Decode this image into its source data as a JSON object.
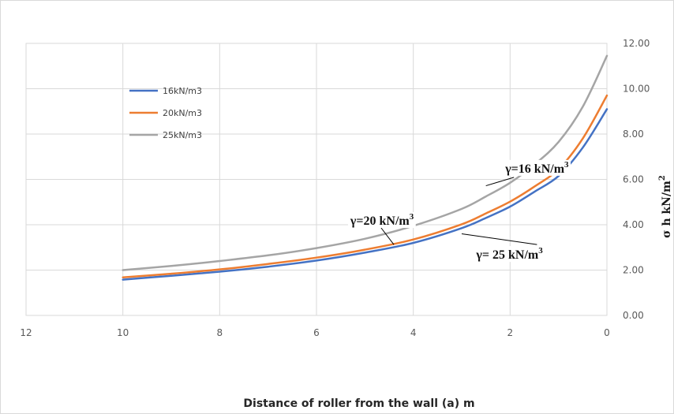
{
  "chart_data": {
    "type": "line",
    "title": "",
    "xlabel": "Distance of roller from the wall (a) m",
    "ylabel": "σ h kN/m",
    "ylabel_superscript": "2",
    "x_reversed": true,
    "xlim": [
      0,
      12
    ],
    "ylim": [
      0,
      12
    ],
    "x_ticks": [
      "12",
      "10",
      "8",
      "6",
      "4",
      "2",
      "0"
    ],
    "y_ticks": [
      "0.00",
      "2.00",
      "4.00",
      "6.00",
      "8.00",
      "10.00",
      "12.00"
    ],
    "grid": true,
    "legend_position": "top-left",
    "series": [
      {
        "name": "16kN/m3",
        "color": "#4472C4",
        "x": [
          10,
          9,
          8,
          7,
          6,
          5,
          4,
          3,
          2.5,
          2,
          1.5,
          1,
          0.5,
          0
        ],
        "y": [
          1.58,
          1.75,
          1.93,
          2.15,
          2.42,
          2.77,
          3.2,
          3.85,
          4.3,
          4.8,
          5.45,
          6.15,
          7.4,
          9.1
        ]
      },
      {
        "name": "20kN/m3",
        "color": "#ED7D31",
        "x": [
          10,
          9,
          8,
          7,
          6,
          5,
          4,
          3,
          2.5,
          2,
          1.5,
          1,
          0.5,
          0
        ],
        "y": [
          1.68,
          1.84,
          2.03,
          2.27,
          2.55,
          2.9,
          3.35,
          4.02,
          4.5,
          5.02,
          5.68,
          6.45,
          7.8,
          9.7
        ]
      },
      {
        "name": "25kN/m3",
        "color": "#A5A5A5",
        "x": [
          10,
          9,
          8,
          7,
          6,
          5,
          4,
          3,
          2.5,
          2,
          1.5,
          1,
          0.5,
          0
        ],
        "y": [
          2.0,
          2.18,
          2.4,
          2.65,
          2.97,
          3.38,
          3.95,
          4.7,
          5.25,
          5.85,
          6.65,
          7.65,
          9.2,
          11.45
        ]
      }
    ],
    "annotations": [
      {
        "text": "γ=16 kN/m",
        "sup": "3",
        "x": 2.1,
        "y": 6.3,
        "arrow_to": [
          2.5,
          5.72
        ]
      },
      {
        "text": "γ=20 kN/m",
        "sup": "3",
        "x": 5.3,
        "y": 4.0,
        "arrow_to": [
          4.4,
          3.12
        ]
      },
      {
        "text": "γ= 25 kN/m",
        "sup": "3",
        "x": 2.7,
        "y": 2.5,
        "arrow_to": [
          3.0,
          3.6
        ]
      }
    ]
  }
}
